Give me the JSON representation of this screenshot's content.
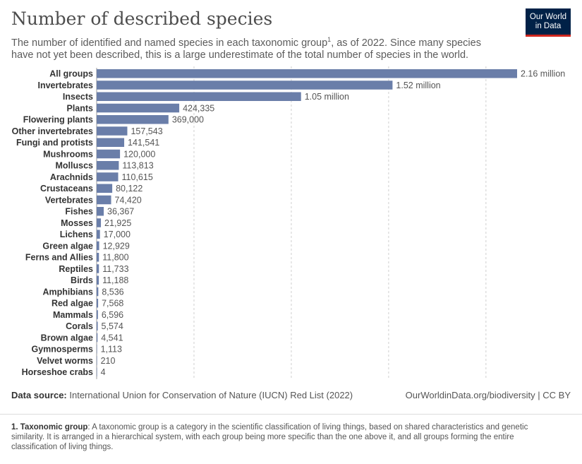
{
  "header": {
    "title": "Number of described species",
    "subtitle_pre": "The number of identified and named species in each taxonomic group",
    "subtitle_sup": "1",
    "subtitle_post": ", as of 2022. Since many species have not yet been described, this is a large underestimate of the total number of species in the world."
  },
  "logo": {
    "line1": "Our World",
    "line2": "in Data",
    "bg": "#002147",
    "accent": "#ce261e"
  },
  "chart_data": {
    "type": "bar",
    "orientation": "horizontal",
    "bar_color": "#6a7ea9",
    "grid": "vertical dashed",
    "xlim": [
      0,
      2160000
    ],
    "categories": [
      "All groups",
      "Invertebrates",
      "Insects",
      "Plants",
      "Flowering plants",
      "Other invertebrates",
      "Fungi and protists",
      "Mushrooms",
      "Molluscs",
      "Arachnids",
      "Crustaceans",
      "Vertebrates",
      "Fishes",
      "Mosses",
      "Lichens",
      "Green algae",
      "Ferns and Allies",
      "Reptiles",
      "Birds",
      "Amphibians",
      "Red algae",
      "Mammals",
      "Corals",
      "Brown algae",
      "Gymnosperms",
      "Velvet worms",
      "Horseshoe crabs"
    ],
    "values": [
      2160000,
      1520000,
      1050000,
      424335,
      369000,
      157543,
      141541,
      120000,
      113813,
      110615,
      80122,
      74420,
      36367,
      21925,
      17000,
      12929,
      11800,
      11733,
      11188,
      8536,
      7568,
      6596,
      5574,
      4541,
      1113,
      210,
      4
    ],
    "labels": [
      "2.16 million",
      "1.52 million",
      "1.05 million",
      "424,335",
      "369,000",
      "157,543",
      "141,541",
      "120,000",
      "113,813",
      "110,615",
      "80,122",
      "74,420",
      "36,367",
      "21,925",
      "17,000",
      "12,929",
      "11,800",
      "11,733",
      "11,188",
      "8,536",
      "7,568",
      "6,596",
      "5,574",
      "4,541",
      "1,113",
      "210",
      "4"
    ]
  },
  "footer": {
    "source_label": "Data source:",
    "source_text": " International Union for Conservation of Nature (IUCN) Red List (2022)",
    "credit": "OurWorldinData.org/biodiversity | CC BY",
    "footnote_label": "1. Taxonomic group",
    "footnote_text": ": A taxonomic group is a category in the scientific classification of living things, based on shared characteristics and genetic similarity. It is arranged in a hierarchical system, with each group being more specific than the one above it, and all groups forming the entire classification of living things."
  }
}
